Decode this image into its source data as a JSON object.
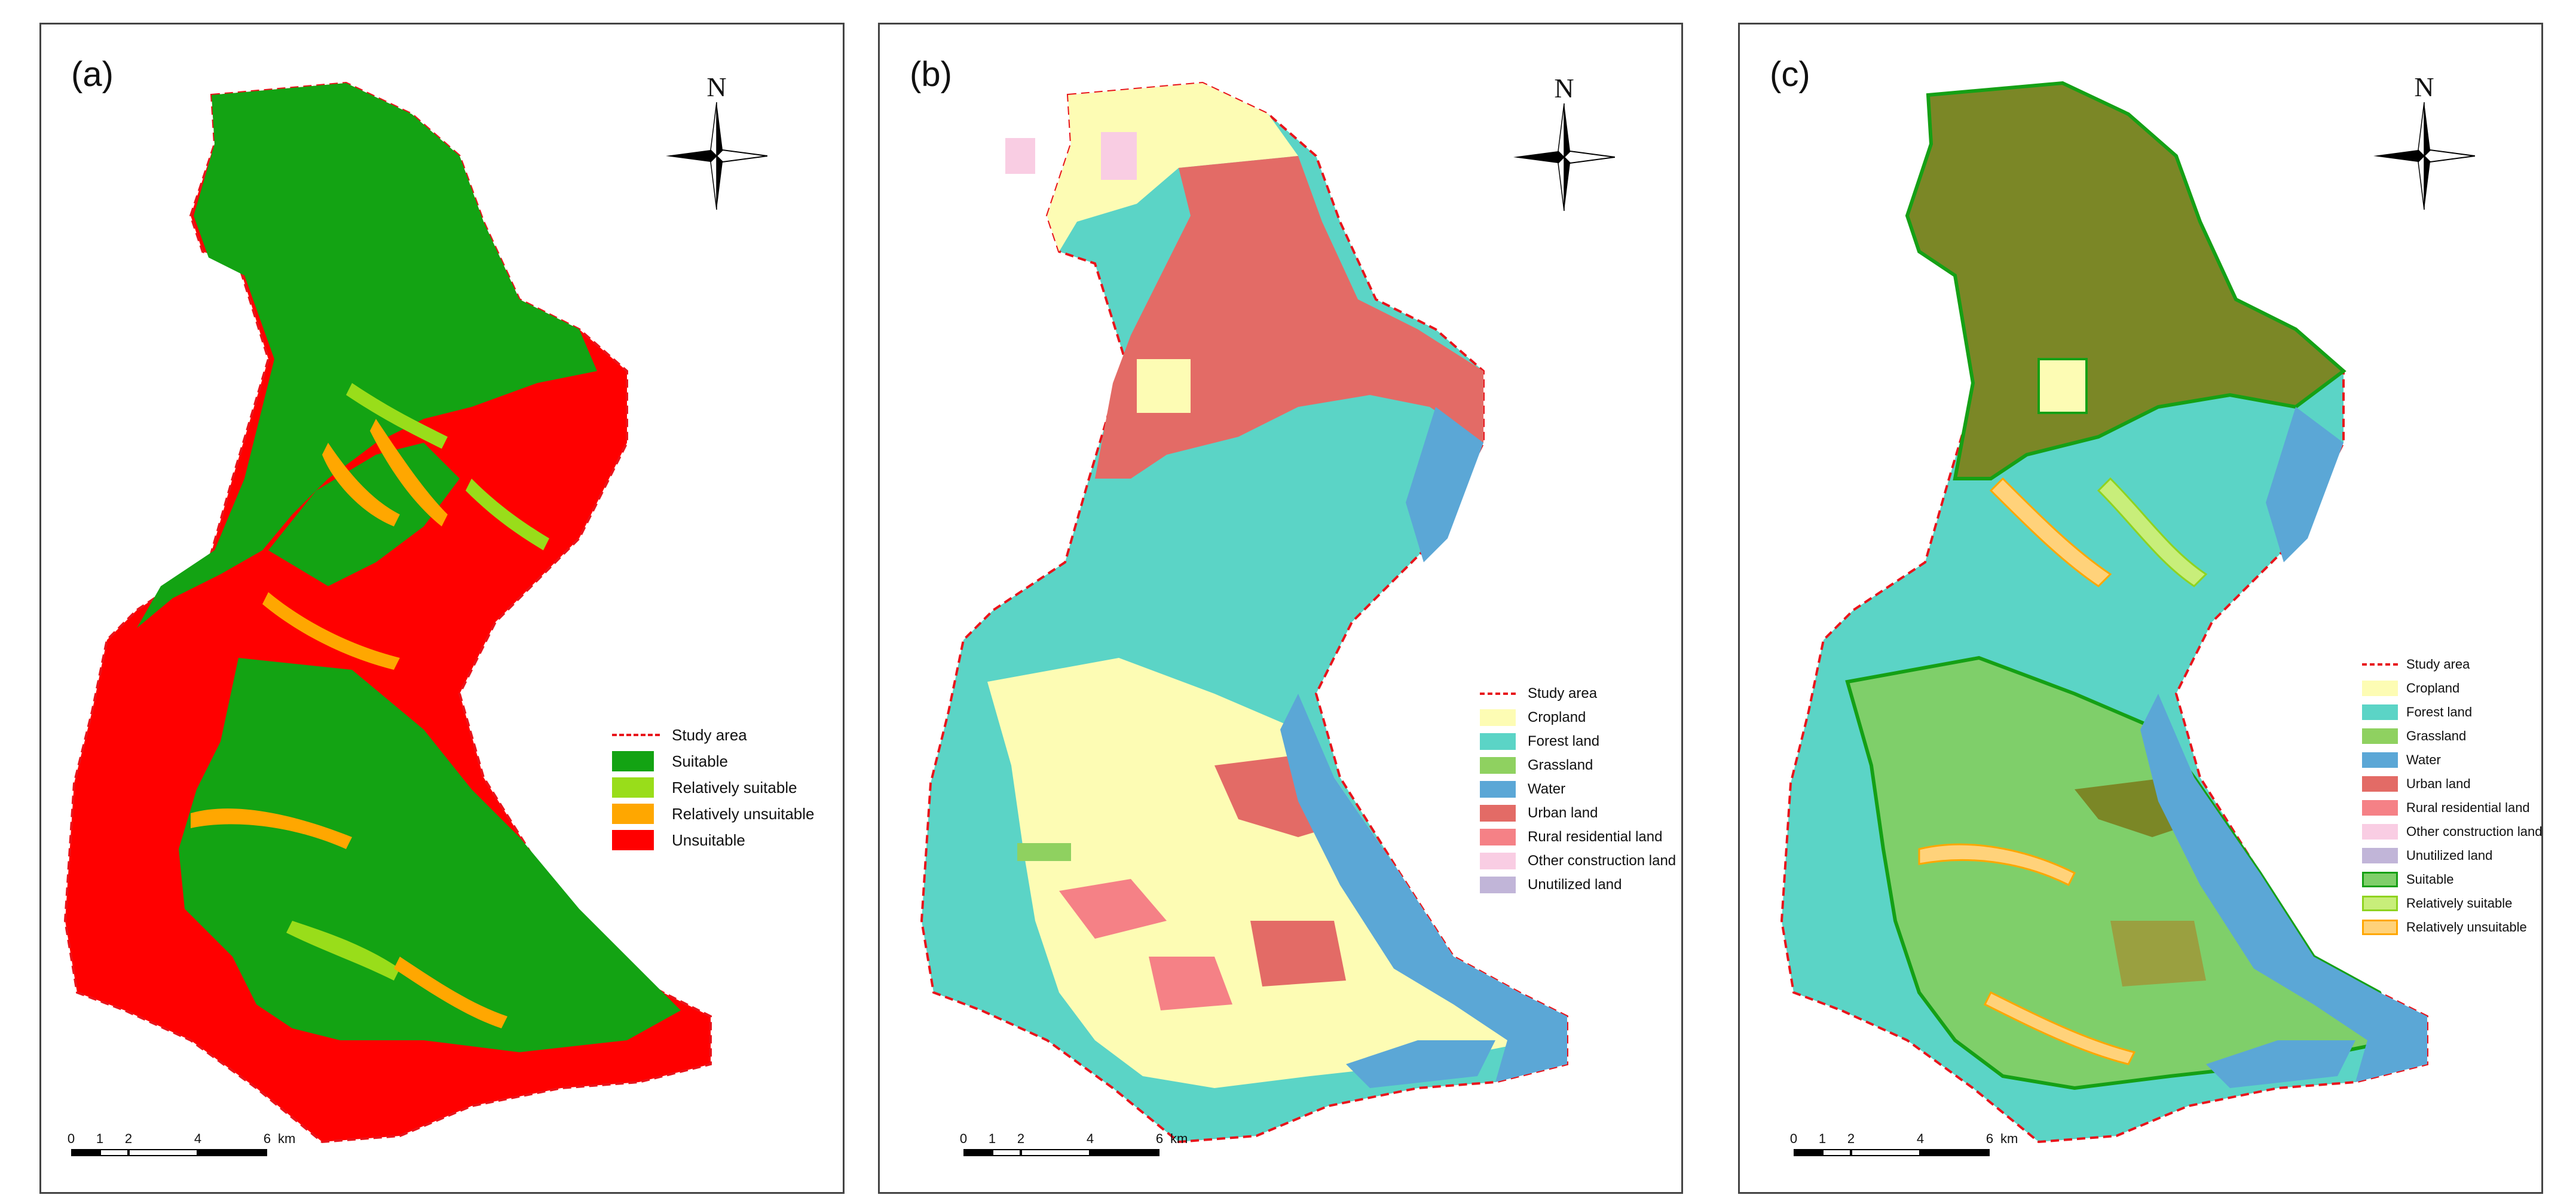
{
  "panels": [
    {
      "label": "(a)",
      "legend": [
        {
          "label": "Study area",
          "type": "line",
          "color": "#e8141b"
        },
        {
          "label": "Suitable",
          "type": "fill",
          "color": "#13a313"
        },
        {
          "label": "Relatively suitable",
          "type": "fill",
          "color": "#99dd1a"
        },
        {
          "label": "Relatively unsuitable",
          "type": "fill",
          "color": "#ffa700"
        },
        {
          "label": "Unsuitable",
          "type": "fill",
          "color": "#ff0000"
        }
      ]
    },
    {
      "label": "(b)",
      "legend": [
        {
          "label": "Study area",
          "type": "line",
          "color": "#e8141b"
        },
        {
          "label": "Cropland",
          "type": "fill",
          "color": "#fdfcb4"
        },
        {
          "label": "Forest land",
          "type": "fill",
          "color": "#5bd4c6"
        },
        {
          "label": "Grassland",
          "type": "fill",
          "color": "#8fd160"
        },
        {
          "label": "Water",
          "type": "fill",
          "color": "#5ba7d6"
        },
        {
          "label": "Urban land",
          "type": "fill",
          "color": "#e36b66"
        },
        {
          "label": "Rural residential land",
          "type": "fill",
          "color": "#f58186"
        },
        {
          "label": "Other construction land",
          "type": "fill",
          "color": "#f9cde3"
        },
        {
          "label": "Unutilized land",
          "type": "fill",
          "color": "#c1b5d8"
        }
      ]
    },
    {
      "label": "(c)",
      "legend": [
        {
          "label": "Study area",
          "type": "line",
          "color": "#e8141b"
        },
        {
          "label": "Cropland",
          "type": "fill",
          "color": "#fdfcb4"
        },
        {
          "label": "Forest land",
          "type": "fill",
          "color": "#5bd4c6"
        },
        {
          "label": "Grassland",
          "type": "fill",
          "color": "#8fd160"
        },
        {
          "label": "Water",
          "type": "fill",
          "color": "#5ba7d6"
        },
        {
          "label": "Urban land",
          "type": "fill",
          "color": "#e36b66"
        },
        {
          "label": "Rural residential land",
          "type": "fill",
          "color": "#f58186"
        },
        {
          "label": "Other construction land",
          "type": "fill",
          "color": "#f9cde3"
        },
        {
          "label": "Unutilized land",
          "type": "fill",
          "color": "#c1b5d8"
        },
        {
          "label": "Suitable",
          "type": "outline",
          "color": "#7fcf6a",
          "border": "#15a015"
        },
        {
          "label": "Relatively suitable",
          "type": "outline",
          "color": "#c8ee7a",
          "border": "#8fd320"
        },
        {
          "label": "Relatively unsuitable",
          "type": "outline",
          "color": "#ffd27a",
          "border": "#ffa700"
        }
      ]
    }
  ],
  "north_arrow": {
    "letter": "N"
  },
  "scale_bar": {
    "ticks": [
      "0",
      "1",
      "2",
      "4",
      "6"
    ],
    "unit": "km"
  }
}
